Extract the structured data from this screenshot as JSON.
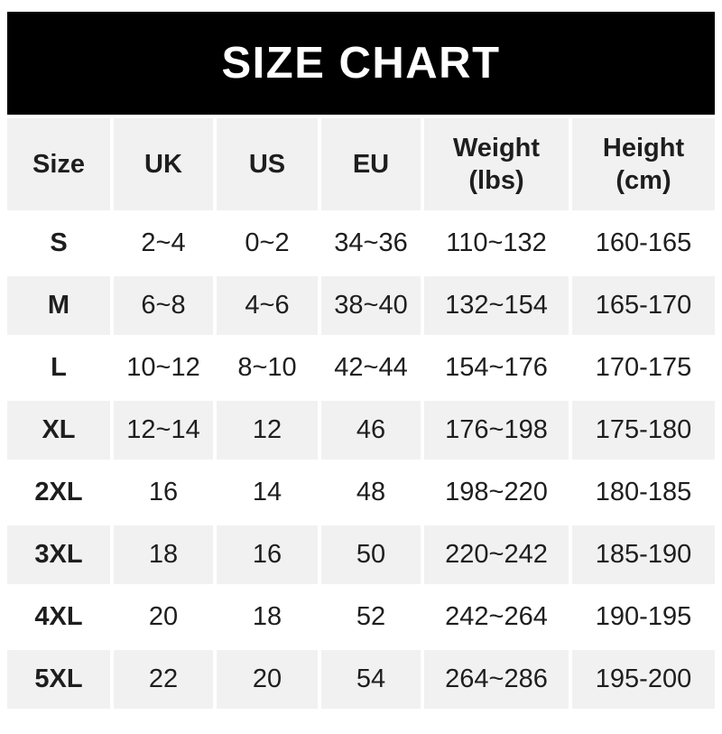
{
  "banner": {
    "title": "SIZE CHART"
  },
  "table": {
    "columns": [
      {
        "key": "size",
        "label": "Size"
      },
      {
        "key": "uk",
        "label": "UK"
      },
      {
        "key": "us",
        "label": "US"
      },
      {
        "key": "eu",
        "label": "EU"
      },
      {
        "key": "weight",
        "label": "Weight (lbs)"
      },
      {
        "key": "height",
        "label": "Height (cm)"
      }
    ],
    "rows": [
      {
        "size": "S",
        "uk": "2~4",
        "us": "0~2",
        "eu": "34~36",
        "weight": "110~132",
        "height": "160-165"
      },
      {
        "size": "M",
        "uk": "6~8",
        "us": "4~6",
        "eu": "38~40",
        "weight": "132~154",
        "height": "165-170"
      },
      {
        "size": "L",
        "uk": "10~12",
        "us": "8~10",
        "eu": "42~44",
        "weight": "154~176",
        "height": "170-175"
      },
      {
        "size": "XL",
        "uk": "12~14",
        "us": "12",
        "eu": "46",
        "weight": "176~198",
        "height": "175-180"
      },
      {
        "size": "2XL",
        "uk": "16",
        "us": "14",
        "eu": "48",
        "weight": "198~220",
        "height": "180-185"
      },
      {
        "size": "3XL",
        "uk": "18",
        "us": "16",
        "eu": "50",
        "weight": "220~242",
        "height": "185-190"
      },
      {
        "size": "4XL",
        "uk": "20",
        "us": "18",
        "eu": "52",
        "weight": "242~264",
        "height": "190-195"
      },
      {
        "size": "5XL",
        "uk": "22",
        "us": "20",
        "eu": "54",
        "weight": "264~286",
        "height": "195-200"
      }
    ]
  },
  "colors": {
    "banner_bg": "#000000",
    "banner_text": "#ffffff",
    "row_bg": "#ffffff",
    "row_alt_bg": "#f1f1f1",
    "text": "#1e1e1e"
  }
}
